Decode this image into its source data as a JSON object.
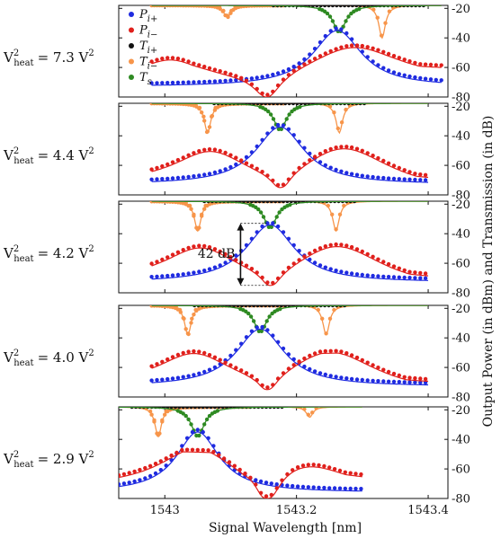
{
  "chart_data": {
    "type": "line",
    "xlabel": "Signal Wavelength [nm]",
    "ylabel": "Output Power (in dBm) and Transmission (in dB)",
    "xlim": [
      1542.93,
      1543.43
    ],
    "xticks": [
      1543,
      1543.2,
      1543.4
    ],
    "xtick_labels": [
      "1543",
      "1543.2",
      "1543.4"
    ],
    "ylim": [
      -80,
      -18
    ],
    "yticks": [
      -20,
      -40,
      -60,
      -80
    ],
    "ytick_labels": [
      "-20",
      "-40",
      "-60",
      "-80"
    ],
    "colors": {
      "P_ip": "#1f2be0",
      "P_im": "#e0201c",
      "T_ip": "#111111",
      "T_im": "#f7954a",
      "T_s": "#2e8a22"
    },
    "legend": {
      "placement": "top-left",
      "entries": [
        {
          "key": "P_ip",
          "main": "P",
          "sub": "i+"
        },
        {
          "key": "P_im",
          "main": "P",
          "sub": "i−"
        },
        {
          "key": "T_ip",
          "main": "T",
          "sub": "i+"
        },
        {
          "key": "T_im",
          "main": "T",
          "sub": "i−"
        },
        {
          "key": "T_s",
          "main": "T",
          "sub": "s"
        }
      ]
    },
    "panels": [
      {
        "label_prefix": "V",
        "label_sub": "heat",
        "label_sup": "2",
        "label_value": "= 7.3 V",
        "label_unit_sup": "2",
        "xr": [
          1542.98,
          1543.42
        ],
        "ts": {
          "x0": 1543.265,
          "w": 0.012,
          "d": 18
        },
        "ti": [
          {
            "x0": 1543.095,
            "w": 0.007,
            "d": 8
          },
          {
            "x0": 1543.33,
            "w": 0.006,
            "d": 22
          }
        ],
        "pp": {
          "x0": 1543.262,
          "peak": -35,
          "w": 0.045,
          "floor": -73
        },
        "pm": {
          "x0": 1543.155,
          "depth": -80,
          "w": 0.02,
          "base": -55,
          "lobes": [
            {
              "x": 1543.01,
              "y": -54
            },
            {
              "x": 1543.285,
              "y": -45
            }
          ],
          "end": -62
        },
        "annotation": null
      },
      {
        "label_prefix": "V",
        "label_sub": "heat",
        "label_sup": "2",
        "label_value": "= 4.4 V",
        "label_unit_sup": "2",
        "xr": [
          1542.98,
          1543.4
        ],
        "ts": {
          "x0": 1543.175,
          "w": 0.012,
          "d": 18
        },
        "ti": [
          {
            "x0": 1543.065,
            "w": 0.006,
            "d": 20
          },
          {
            "x0": 1543.265,
            "w": 0.006,
            "d": 20
          }
        ],
        "pp": {
          "x0": 1543.175,
          "peak": -34,
          "w": 0.045,
          "floor": -73
        },
        "pm": {
          "x0": 1543.175,
          "depth": -75,
          "w": 0.012,
          "base": -60,
          "lobes": [
            {
              "x": 1543.07,
              "y": -50
            },
            {
              "x": 1543.27,
              "y": -48
            }
          ],
          "end": -72
        },
        "annotation": null
      },
      {
        "label_prefix": "V",
        "label_sub": "heat",
        "label_sup": "2",
        "label_value": "= 4.2 V",
        "label_unit_sup": "2",
        "xr": [
          1542.98,
          1543.4
        ],
        "ts": {
          "x0": 1543.16,
          "w": 0.012,
          "d": 18
        },
        "ti": [
          {
            "x0": 1543.05,
            "w": 0.006,
            "d": 20
          },
          {
            "x0": 1543.26,
            "w": 0.006,
            "d": 20
          }
        ],
        "pp": {
          "x0": 1543.16,
          "peak": -34,
          "w": 0.045,
          "floor": -73
        },
        "pm": {
          "x0": 1543.16,
          "depth": -75,
          "w": 0.012,
          "base": -60,
          "lobes": [
            {
              "x": 1543.055,
              "y": -49
            },
            {
              "x": 1543.26,
              "y": -48
            }
          ],
          "end": -72
        },
        "annotation": {
          "text": "42 dB",
          "x": 1543.115,
          "y_top": -33,
          "y_bottom": -75
        }
      },
      {
        "label_prefix": "V",
        "label_sub": "heat",
        "label_sup": "2",
        "label_value": "= 4.0 V",
        "label_unit_sup": "2",
        "xr": [
          1542.98,
          1543.4
        ],
        "ts": {
          "x0": 1543.145,
          "w": 0.012,
          "d": 18
        },
        "ti": [
          {
            "x0": 1543.035,
            "w": 0.006,
            "d": 20
          },
          {
            "x0": 1543.245,
            "w": 0.006,
            "d": 20
          }
        ],
        "pp": {
          "x0": 1543.145,
          "peak": -34,
          "w": 0.045,
          "floor": -73
        },
        "pm": {
          "x0": 1543.155,
          "depth": -75,
          "w": 0.012,
          "base": -62,
          "lobes": [
            {
              "x": 1543.045,
              "y": -50
            },
            {
              "x": 1543.25,
              "y": -49
            }
          ],
          "end": -72
        },
        "annotation": null
      },
      {
        "label_prefix": "V",
        "label_sub": "heat",
        "label_sup": "2",
        "label_value": "= 2.9 V",
        "label_unit_sup": "2",
        "xr": [
          1542.93,
          1543.3
        ],
        "ts": {
          "x0": 1543.05,
          "w": 0.012,
          "d": 20
        },
        "ti": [
          {
            "x0": 1542.99,
            "w": 0.006,
            "d": 20
          },
          {
            "x0": 1543.22,
            "w": 0.006,
            "d": 7
          }
        ],
        "pp": {
          "x0": 1543.05,
          "peak": -35,
          "w": 0.04,
          "floor": -76
        },
        "pm": {
          "x0": 1543.155,
          "depth": -80,
          "w": 0.015,
          "base": -60,
          "lobes": [
            {
              "x": 1543.05,
              "y": -45
            },
            {
              "x": 1543.21,
              "y": -56
            }
          ],
          "end": -70
        },
        "annotation": null
      }
    ]
  }
}
